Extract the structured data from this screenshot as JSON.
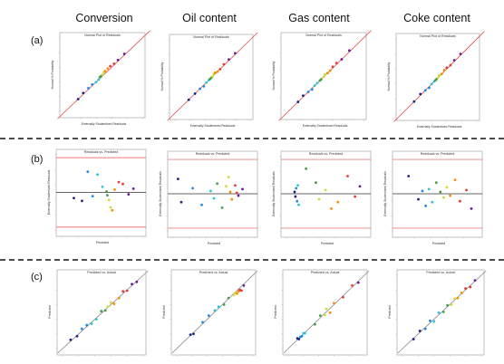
{
  "figure": {
    "columns": [
      "Conversion",
      "Oil content",
      "Gas content",
      "Coke content"
    ],
    "rows": [
      "(a)",
      "(b)",
      "(c)"
    ]
  },
  "colors": {
    "reference_line": "#e05050",
    "limit_line": "#e05050",
    "zero_line": "#333333",
    "frame": "#999999",
    "row_separator": "#333333",
    "point_palette": [
      "#1a237e",
      "#1e88e5",
      "#26c6da",
      "#43a047",
      "#cddc39",
      "#fb8c00",
      "#e53935",
      "#6a1b9a"
    ]
  },
  "chart_data": [
    {
      "type": "scatter",
      "row": "(a)",
      "column": "Conversion",
      "title": "Normal Plot of Residuals",
      "xlabel": "Externally Studentized Residuals",
      "ylabel": "Normal % Probability",
      "xlim": [
        -3,
        3
      ],
      "ylim": [
        -3,
        3
      ],
      "reference_line": "diagonal",
      "x": [
        -2.0,
        -1.6,
        -1.2,
        -0.9,
        -0.6,
        -0.4,
        -0.3,
        -0.2,
        -0.1,
        0.0,
        0.1,
        0.3,
        0.5,
        0.8,
        1.1,
        1.6
      ],
      "y": [
        -2.0,
        -1.5,
        -1.1,
        -0.8,
        -0.6,
        -0.4,
        -0.2,
        -0.1,
        0.0,
        0.2,
        0.3,
        0.5,
        0.7,
        0.9,
        1.2,
        1.7
      ]
    },
    {
      "type": "scatter",
      "row": "(a)",
      "column": "Oil content",
      "title": "Normal Plot of Residuals",
      "xlabel": "Externally Studentized Residuals",
      "ylabel": "Normal % Probability",
      "xlim": [
        -3,
        3
      ],
      "ylim": [
        -3,
        3
      ],
      "reference_line": "diagonal",
      "x": [
        -1.9,
        -1.4,
        -1.0,
        -0.7,
        -0.5,
        -0.3,
        -0.2,
        -0.1,
        0.0,
        0.1,
        0.2,
        0.4,
        0.6,
        0.9,
        1.3,
        1.8
      ],
      "y": [
        -1.9,
        -1.4,
        -1.0,
        -0.8,
        -0.5,
        -0.3,
        -0.2,
        -0.1,
        0.0,
        0.2,
        0.3,
        0.4,
        0.6,
        1.0,
        1.4,
        1.9
      ]
    },
    {
      "type": "scatter",
      "row": "(a)",
      "column": "Gas content",
      "title": "Normal Plot of Residuals",
      "xlabel": "Externally Studentized Residuals",
      "ylabel": "Normal % Probability",
      "xlim": [
        -3,
        3
      ],
      "ylim": [
        -3,
        3
      ],
      "reference_line": "diagonal",
      "x": [
        -2.1,
        -1.7,
        -1.3,
        -1.0,
        -0.8,
        -0.6,
        -0.4,
        -0.3,
        -0.1,
        0.0,
        0.2,
        0.4,
        0.6,
        0.9,
        1.3,
        1.9
      ],
      "y": [
        -2.1,
        -1.6,
        -1.3,
        -1.1,
        -0.8,
        -0.6,
        -0.4,
        -0.3,
        -0.1,
        0.1,
        0.2,
        0.4,
        0.7,
        1.0,
        1.3,
        2.0
      ]
    },
    {
      "type": "scatter",
      "row": "(a)",
      "column": "Coke content",
      "title": "Normal Plot of Residuals",
      "xlabel": "Externally Studentized Residuals",
      "ylabel": "Normal % Probability",
      "xlim": [
        -3,
        3
      ],
      "ylim": [
        -3,
        3
      ],
      "reference_line": "diagonal",
      "x": [
        -2.0,
        -1.5,
        -1.1,
        -0.8,
        -0.6,
        -0.4,
        -0.3,
        -0.2,
        -0.1,
        0.0,
        0.2,
        0.4,
        0.6,
        0.9,
        1.2,
        1.7
      ],
      "y": [
        -2.0,
        -1.4,
        -1.1,
        -0.9,
        -0.6,
        -0.4,
        -0.3,
        -0.2,
        -0.1,
        0.1,
        0.2,
        0.5,
        0.7,
        0.9,
        1.3,
        1.8
      ]
    },
    {
      "type": "scatter",
      "row": "(b)",
      "column": "Conversion",
      "title": "Residuals vs. Predicted",
      "xlabel": "Predicted",
      "ylabel": "Externally Studentized Residuals",
      "xlim": [
        0,
        10
      ],
      "ylim": [
        -4,
        4
      ],
      "limit_lines": [
        -3.7,
        3.7
      ],
      "zero_line": 0,
      "x": [
        1.5,
        2.5,
        3.2,
        3.8,
        4.4,
        5.0,
        5.5,
        5.6,
        5.8,
        6.0,
        6.2,
        6.5,
        7.0,
        7.5,
        8.2,
        8.8
      ],
      "y": [
        -0.6,
        -0.9,
        2.2,
        -0.4,
        1.9,
        0.6,
        0.1,
        -0.3,
        -0.8,
        -1.6,
        -1.9,
        0.3,
        1.1,
        0.9,
        -0.2,
        0.4
      ]
    },
    {
      "type": "scatter",
      "row": "(b)",
      "column": "Oil content",
      "title": "Residuals vs. Predicted",
      "xlabel": "Predicted",
      "ylabel": "Externally Studentized Residuals",
      "xlim": [
        0,
        10
      ],
      "ylim": [
        -4,
        4
      ],
      "limit_lines": [
        -3.7,
        3.7
      ],
      "zero_line": 0,
      "x": [
        0.6,
        1.0,
        2.4,
        3.5,
        4.6,
        5.0,
        5.4,
        6.0,
        6.5,
        6.8,
        7.0,
        7.2,
        7.6,
        7.8,
        8.0,
        8.5
      ],
      "y": [
        1.6,
        -0.9,
        0.6,
        -1.2,
        0.3,
        -0.5,
        1.1,
        -1.5,
        0.8,
        1.8,
        0.2,
        -0.6,
        0.9,
        0.1,
        -0.2,
        0.5
      ]
    },
    {
      "type": "scatter",
      "row": "(b)",
      "column": "Gas content",
      "title": "Residuals vs. Predicted",
      "xlabel": "Predicted",
      "ylabel": "Externally Studentized Residuals",
      "xlim": [
        0,
        10
      ],
      "ylim": [
        -4,
        4
      ],
      "limit_lines": [
        -3.7,
        3.7
      ],
      "zero_line": 0,
      "x": [
        1.0,
        1.1,
        1.2,
        1.3,
        1.4,
        1.5,
        2.4,
        3.6,
        4.0,
        4.8,
        5.5,
        6.3,
        7.5,
        8.4,
        9.0
      ],
      "y": [
        0.2,
        -0.3,
        0.6,
        -0.8,
        0.9,
        -1.2,
        2.7,
        1.2,
        -0.6,
        0.4,
        -1.6,
        -0.9,
        1.9,
        -0.3,
        0.8
      ]
    },
    {
      "type": "scatter",
      "row": "(b)",
      "column": "Coke content",
      "title": "Residuals vs. Predicted",
      "xlabel": "Predicted",
      "ylabel": "Externally Studentized Residuals",
      "xlim": [
        0,
        10
      ],
      "ylim": [
        -4,
        4
      ],
      "limit_lines": [
        -3.7,
        3.7
      ],
      "zero_line": 0,
      "x": [
        1.3,
        2.5,
        3.0,
        3.4,
        3.8,
        4.2,
        4.7,
        5.2,
        5.6,
        6.0,
        6.4,
        7.0,
        7.6,
        8.4,
        9.0
      ],
      "y": [
        1.9,
        -0.6,
        0.3,
        -1.3,
        0.5,
        -0.9,
        1.2,
        0.2,
        -0.4,
        0.7,
        -0.2,
        1.5,
        -0.8,
        0.4,
        -1.6
      ]
    },
    {
      "type": "scatter",
      "row": "(c)",
      "column": "Conversion",
      "title": "Predicted vs. Actual",
      "xlabel": "",
      "ylabel": "Predicted",
      "xlim": [
        0,
        10
      ],
      "ylim": [
        0,
        10
      ],
      "reference_line": "diagonal",
      "x": [
        1.0,
        1.8,
        2.4,
        3.0,
        3.6,
        4.2,
        4.8,
        5.3,
        5.6,
        6.0,
        6.4,
        7.0,
        7.5,
        8.0,
        8.6,
        9.2
      ],
      "y": [
        1.2,
        1.7,
        2.7,
        3.2,
        3.4,
        4.0,
        5.1,
        5.2,
        5.7,
        6.3,
        6.1,
        6.9,
        7.8,
        7.9,
        8.8,
        9.1
      ]
    },
    {
      "type": "scatter",
      "row": "(c)",
      "column": "Oil content",
      "title": "Predicted vs. Actual",
      "xlabel": "",
      "ylabel": "Predicted",
      "xlim": [
        0,
        10
      ],
      "ylim": [
        0,
        10
      ],
      "reference_line": "diagonal",
      "x": [
        1.8,
        2.2,
        3.4,
        4.2,
        5.0,
        5.5,
        6.2,
        6.8,
        7.5,
        7.7,
        7.9,
        8.1,
        8.3,
        8.5,
        8.8
      ],
      "y": [
        1.9,
        2.0,
        3.6,
        4.5,
        5.2,
        5.7,
        6.0,
        6.9,
        7.3,
        7.6,
        7.5,
        7.8,
        8.0,
        7.9,
        8.6
      ]
    },
    {
      "type": "scatter",
      "row": "(c)",
      "column": "Gas content",
      "title": "Predicted vs. Actual",
      "xlabel": "",
      "ylabel": "Predicted",
      "xlim": [
        0,
        10
      ],
      "ylim": [
        0,
        10
      ],
      "reference_line": "diagonal",
      "x": [
        1.2,
        1.4,
        1.6,
        1.8,
        2.0,
        2.2,
        3.5,
        4.2,
        4.8,
        5.0,
        5.5,
        6.0,
        7.2,
        8.4,
        9.2
      ],
      "y": [
        1.4,
        1.3,
        1.6,
        1.7,
        2.1,
        2.1,
        3.3,
        4.5,
        4.6,
        5.4,
        4.9,
        6.2,
        7.0,
        8.6,
        9.0
      ]
    },
    {
      "type": "scatter",
      "row": "(c)",
      "column": "Coke content",
      "title": "Predicted vs. Actual",
      "xlabel": "",
      "ylabel": "Predicted",
      "xlim": [
        0,
        10
      ],
      "ylim": [
        0,
        10
      ],
      "reference_line": "diagonal",
      "x": [
        1.4,
        2.2,
        2.9,
        3.5,
        4.0,
        4.6,
        5.2,
        5.7,
        6.2,
        6.6,
        7.0,
        7.5,
        8.0,
        8.6,
        9.2
      ],
      "y": [
        1.3,
        2.4,
        2.7,
        3.8,
        3.7,
        4.9,
        5.0,
        5.9,
        6.0,
        6.8,
        6.9,
        7.6,
        8.2,
        8.4,
        9.3
      ]
    }
  ]
}
